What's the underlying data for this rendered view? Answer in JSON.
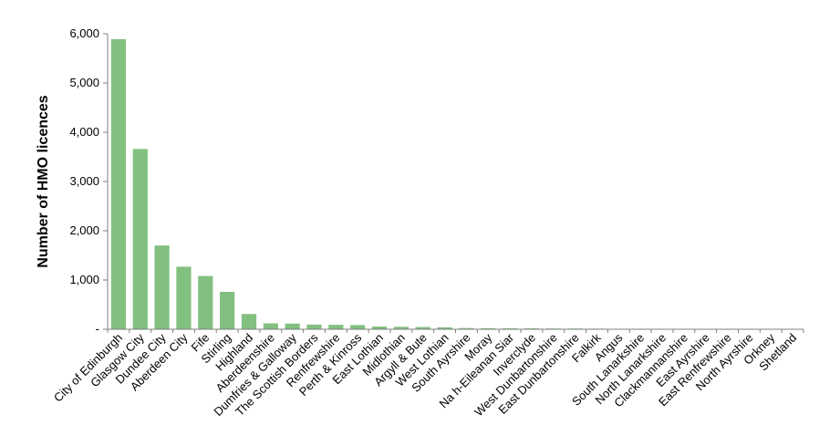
{
  "chart_data": {
    "type": "bar",
    "title": "",
    "xlabel": "",
    "ylabel": "Number of HMO licences",
    "ylim": [
      0,
      6000
    ],
    "yticks": [
      0,
      1000,
      2000,
      3000,
      4000,
      5000,
      6000
    ],
    "ytick_labels": [
      "-",
      "1,000",
      "2,000",
      "3,000",
      "4,000",
      "5,000",
      "6,000"
    ],
    "grid": false,
    "bar_color": "#82c07f",
    "categories": [
      "City of Edinburgh",
      "Glasgow City",
      "Dundee City",
      "Aberdeen City",
      "Fife",
      "Stirling",
      "Highland",
      "Aberdeenshire",
      "Dumfries & Galloway",
      "The Scottish Borders",
      "Renfrewshire",
      "Perth & Kinross",
      "East Lothian",
      "Midlothian",
      "Argyll & Bute",
      "West Lothian",
      "South Ayrshire",
      "Moray",
      "Na h-Eileanan Siar",
      "Inverclyde",
      "West Dunbartonshire",
      "East Dunbartonshire",
      "Falkirk",
      "Angus",
      "South Lanarkshire",
      "North Lanarkshire",
      "Clackmannanshire",
      "East Ayrshire",
      "East Renfrewshire",
      "North Ayrshire",
      "Orkney",
      "Shetland"
    ],
    "values": [
      5890,
      3660,
      1700,
      1270,
      1080,
      760,
      310,
      120,
      115,
      95,
      90,
      85,
      55,
      50,
      45,
      40,
      25,
      20,
      20,
      18,
      15,
      15,
      12,
      5,
      3,
      3,
      3,
      2,
      2,
      1,
      1,
      1
    ]
  }
}
